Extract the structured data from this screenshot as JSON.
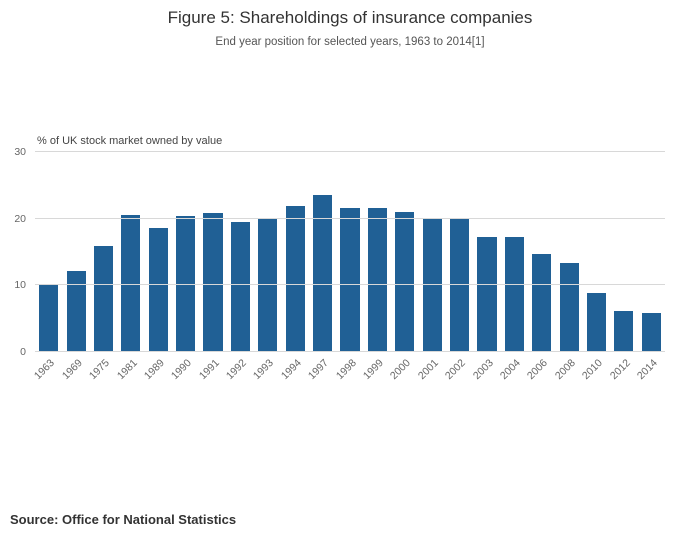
{
  "header": {
    "title": "Figure 5: Shareholdings of insurance companies",
    "subtitle": "End year position for selected years, 1963 to 2014[1]"
  },
  "chart_data": {
    "type": "bar",
    "title": "Figure 5: Shareholdings of insurance companies",
    "subtitle": "End year position for selected years, 1963 to 2014[1]",
    "categories": [
      "1963",
      "1969",
      "1975",
      "1981",
      "1989",
      "1990",
      "1991",
      "1992",
      "1993",
      "1994",
      "1997",
      "1998",
      "1999",
      "2000",
      "2001",
      "2002",
      "2003",
      "2004",
      "2006",
      "2008",
      "2010",
      "2012",
      "2014"
    ],
    "values": [
      10.0,
      12.2,
      15.9,
      20.5,
      18.6,
      20.4,
      20.8,
      19.5,
      20.0,
      21.9,
      23.6,
      21.6,
      21.6,
      21.0,
      20.0,
      19.9,
      17.3,
      17.2,
      14.7,
      13.4,
      8.8,
      6.2,
      5.9
    ],
    "xlabel": "",
    "ylabel": "% of UK stock market owned by value",
    "ylim": [
      0,
      30
    ],
    "yticks": [
      0,
      10,
      20,
      30
    ],
    "grid": true,
    "legend": "none",
    "bar_color": "#206095",
    "gridline_color": "#d8d8d8"
  },
  "footer": {
    "source": "Source: Office for National Statistics"
  }
}
